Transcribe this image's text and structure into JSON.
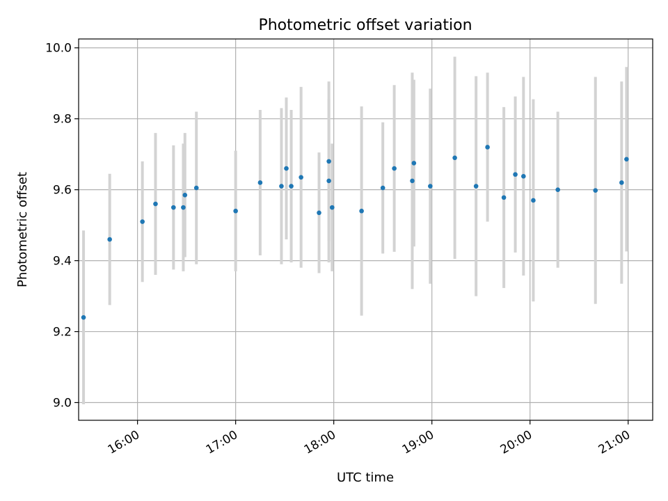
{
  "chart_data": {
    "type": "scatter",
    "title": "Photometric offset variation",
    "xlabel": "UTC time",
    "ylabel": "Photometric offset",
    "xlim": [
      "15:24",
      "21:15"
    ],
    "ylim": [
      8.95,
      10.025
    ],
    "x_ticks": [
      "16:00",
      "17:00",
      "18:00",
      "19:00",
      "20:00",
      "21:00"
    ],
    "y_ticks": [
      9.0,
      9.2,
      9.4,
      9.6,
      9.8,
      10.0
    ],
    "y_tick_labels": [
      "9.0",
      "9.2",
      "9.4",
      "9.6",
      "9.8",
      "10.0"
    ],
    "grid": true,
    "colors": {
      "marker": "#1f77b4",
      "errorbar": "#d3d3d3",
      "grid": "#b0b0b0"
    },
    "series": [
      {
        "points": [
          {
            "x": "15:27",
            "y": 9.24,
            "err": 0.245
          },
          {
            "x": "15:43",
            "y": 9.46,
            "err": 0.185
          },
          {
            "x": "16:03",
            "y": 9.51,
            "err": 0.17
          },
          {
            "x": "16:11",
            "y": 9.56,
            "err": 0.2
          },
          {
            "x": "16:22",
            "y": 9.55,
            "err": 0.175
          },
          {
            "x": "16:28",
            "y": 9.55,
            "err": 0.18
          },
          {
            "x": "16:29",
            "y": 9.585,
            "err": 0.175
          },
          {
            "x": "16:36",
            "y": 9.605,
            "err": 0.215
          },
          {
            "x": "17:00",
            "y": 9.54,
            "err": 0.17
          },
          {
            "x": "17:15",
            "y": 9.62,
            "err": 0.205
          },
          {
            "x": "17:28",
            "y": 9.61,
            "err": 0.22
          },
          {
            "x": "17:31",
            "y": 9.66,
            "err": 0.2
          },
          {
            "x": "17:34",
            "y": 9.61,
            "err": 0.215
          },
          {
            "x": "17:40",
            "y": 9.635,
            "err": 0.255
          },
          {
            "x": "17:51",
            "y": 9.535,
            "err": 0.17
          },
          {
            "x": "17:57",
            "y": 9.68,
            "err": 0.225
          },
          {
            "x": "17:57",
            "y": 9.625,
            "err": 0.23
          },
          {
            "x": "17:59",
            "y": 9.55,
            "err": 0.18
          },
          {
            "x": "18:17",
            "y": 9.54,
            "err": 0.295
          },
          {
            "x": "18:30",
            "y": 9.605,
            "err": 0.185
          },
          {
            "x": "18:37",
            "y": 9.66,
            "err": 0.235
          },
          {
            "x": "18:48",
            "y": 9.625,
            "err": 0.305
          },
          {
            "x": "18:49",
            "y": 9.675,
            "err": 0.235
          },
          {
            "x": "18:59",
            "y": 9.61,
            "err": 0.275
          },
          {
            "x": "19:14",
            "y": 9.69,
            "err": 0.285
          },
          {
            "x": "19:27",
            "y": 9.61,
            "err": 0.31
          },
          {
            "x": "19:34",
            "y": 9.72,
            "err": 0.21
          },
          {
            "x": "19:44",
            "y": 9.578,
            "err": 0.255
          },
          {
            "x": "19:51",
            "y": 9.643,
            "err": 0.22
          },
          {
            "x": "19:56",
            "y": 9.638,
            "err": 0.28
          },
          {
            "x": "20:02",
            "y": 9.57,
            "err": 0.285
          },
          {
            "x": "20:17",
            "y": 9.6,
            "err": 0.22
          },
          {
            "x": "20:40",
            "y": 9.598,
            "err": 0.32
          },
          {
            "x": "20:56",
            "y": 9.62,
            "err": 0.285
          },
          {
            "x": "20:59",
            "y": 9.686,
            "err": 0.26
          }
        ]
      }
    ]
  }
}
